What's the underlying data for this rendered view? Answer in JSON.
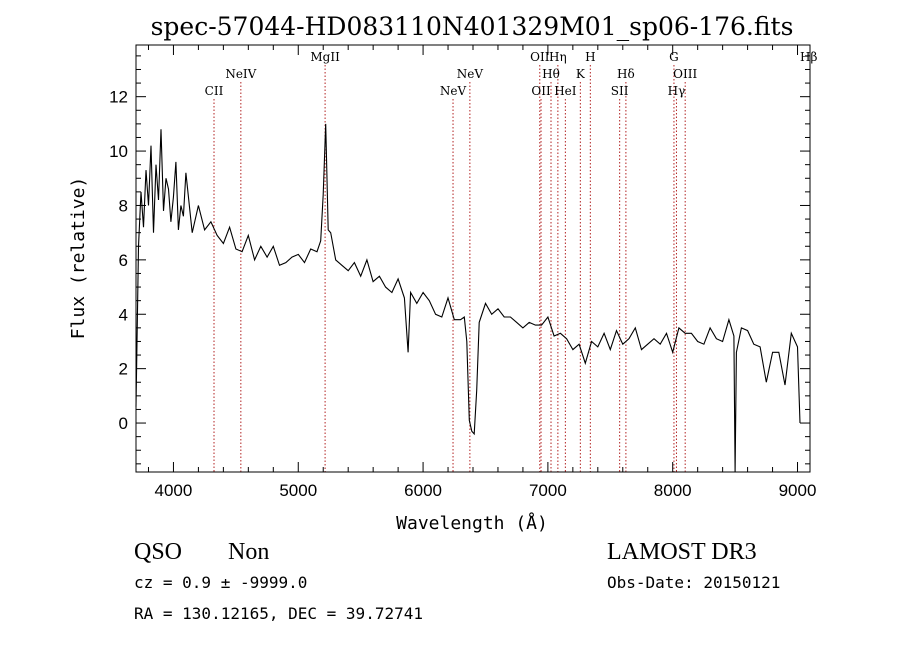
{
  "chart_data": {
    "type": "line",
    "title": "spec-57044-HD083110N401329M01_sp06-176.fits",
    "xlabel": "Wavelength (Å)",
    "ylabel": "Flux (relative)",
    "xlim": [
      3700,
      9100
    ],
    "ylim": [
      -1.8,
      13.9
    ],
    "xticks": [
      4000,
      5000,
      6000,
      7000,
      8000,
      9000
    ],
    "yticks": [
      0,
      2,
      4,
      6,
      8,
      10,
      12
    ],
    "grid": false,
    "spectrum": {
      "x": [
        3700,
        3720,
        3740,
        3760,
        3780,
        3800,
        3820,
        3840,
        3860,
        3880,
        3900,
        3920,
        3940,
        3960,
        3980,
        4000,
        4020,
        4040,
        4060,
        4080,
        4100,
        4150,
        4200,
        4250,
        4300,
        4350,
        4400,
        4450,
        4500,
        4550,
        4600,
        4650,
        4700,
        4750,
        4800,
        4850,
        4900,
        4950,
        5000,
        5050,
        5100,
        5150,
        5180,
        5200,
        5220,
        5240,
        5260,
        5300,
        5350,
        5400,
        5450,
        5500,
        5550,
        5600,
        5650,
        5700,
        5750,
        5800,
        5850,
        5880,
        5900,
        5950,
        6000,
        6050,
        6100,
        6150,
        6200,
        6250,
        6300,
        6330,
        6350,
        6370,
        6390,
        6410,
        6430,
        6450,
        6500,
        6550,
        6600,
        6650,
        6700,
        6750,
        6800,
        6850,
        6900,
        6950,
        7000,
        7050,
        7100,
        7150,
        7200,
        7250,
        7300,
        7350,
        7400,
        7450,
        7500,
        7550,
        7600,
        7650,
        7700,
        7750,
        7800,
        7850,
        7900,
        7950,
        8000,
        8050,
        8100,
        8150,
        8200,
        8250,
        8300,
        8350,
        8400,
        8450,
        8490,
        8500,
        8510,
        8550,
        8600,
        8650,
        8700,
        8750,
        8800,
        8850,
        8900,
        8950,
        9000,
        9020
      ],
      "y": [
        0.6,
        6.5,
        8.5,
        7.2,
        9.3,
        8.0,
        10.2,
        7.0,
        9.5,
        8.2,
        10.8,
        7.8,
        9.0,
        8.6,
        7.4,
        8.3,
        9.6,
        7.1,
        8.0,
        7.6,
        9.2,
        7.0,
        8.0,
        7.1,
        7.4,
        6.9,
        6.6,
        7.2,
        6.4,
        6.3,
        6.9,
        6.0,
        6.5,
        6.1,
        6.5,
        5.8,
        5.9,
        6.1,
        6.2,
        5.9,
        6.4,
        6.3,
        6.7,
        8.4,
        11.0,
        7.1,
        7.0,
        6.0,
        5.8,
        5.6,
        5.9,
        5.4,
        6.0,
        5.2,
        5.4,
        5.0,
        4.8,
        5.3,
        4.6,
        2.6,
        4.8,
        4.4,
        4.8,
        4.5,
        4.0,
        3.9,
        4.6,
        3.8,
        3.8,
        3.9,
        3.0,
        0.1,
        -0.3,
        -0.4,
        1.2,
        3.7,
        4.4,
        4.0,
        4.2,
        3.9,
        3.9,
        3.7,
        3.5,
        3.7,
        3.6,
        3.6,
        3.9,
        3.2,
        3.3,
        3.1,
        2.7,
        2.9,
        2.2,
        3.0,
        2.8,
        3.3,
        2.7,
        3.4,
        2.9,
        3.1,
        3.5,
        2.7,
        2.9,
        3.1,
        2.9,
        3.3,
        2.6,
        3.5,
        3.3,
        3.3,
        3.0,
        2.9,
        3.5,
        3.1,
        3.0,
        3.8,
        3.2,
        -1.8,
        2.6,
        3.5,
        3.4,
        2.9,
        2.8,
        1.5,
        2.6,
        2.6,
        1.4,
        3.3,
        2.8,
        0.0
      ]
    },
    "lines": [
      {
        "label": "CII",
        "x": 4325,
        "tier": "low"
      },
      {
        "label": "NeIV",
        "x": 4540,
        "tier": "mid"
      },
      {
        "label": "MgII",
        "x": 5215,
        "tier": "high"
      },
      {
        "label": "NeV",
        "x": 6240,
        "tier": "low"
      },
      {
        "label": "NeV",
        "x": 6375,
        "tier": "mid"
      },
      {
        "label": "OII",
        "x": 6935,
        "tier": "high"
      },
      {
        "label": "OII",
        "x": 6945,
        "tier": "low"
      },
      {
        "label": "Hη",
        "x": 7080,
        "tier": "high"
      },
      {
        "label": "Hθ",
        "x": 7025,
        "tier": "mid"
      },
      {
        "label": "HeI",
        "x": 7140,
        "tier": "low"
      },
      {
        "label": "K",
        "x": 7260,
        "tier": "mid"
      },
      {
        "label": "H",
        "x": 7340,
        "tier": "high"
      },
      {
        "label": "SII",
        "x": 7575,
        "tier": "low"
      },
      {
        "label": "Hδ",
        "x": 7625,
        "tier": "mid"
      },
      {
        "label": "G",
        "x": 8010,
        "tier": "high"
      },
      {
        "label": "Hγ",
        "x": 8030,
        "tier": "low"
      },
      {
        "label": "OIII",
        "x": 8100,
        "tier": "mid"
      },
      {
        "label": "Hβ",
        "x": 9090,
        "tier": "high"
      }
    ],
    "colors": {
      "spectrum": "#000000",
      "lines": "#b22222"
    }
  },
  "info": {
    "class": "QSO",
    "subclass": "Non",
    "survey": "LAMOST DR3",
    "cz": "cz = 0.9 ± -9999.0",
    "obs_date": "Obs-Date: 20150121",
    "coords": "RA = 130.12165, DEC =  39.72741"
  }
}
